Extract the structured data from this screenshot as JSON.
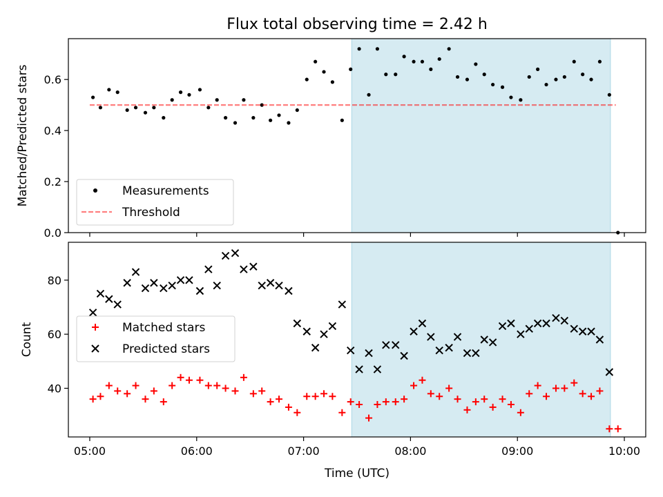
{
  "chart_data": {
    "type": "scatter",
    "title": "Flux total observing time = 2.42 h",
    "xlabel": "Time (UTC)",
    "x_ticks": [
      "05:00",
      "06:00",
      "07:00",
      "08:00",
      "09:00",
      "10:00"
    ],
    "x_tick_hours": [
      5,
      6,
      7,
      8,
      9,
      10
    ],
    "xlim_hours": [
      4.8,
      10.2
    ],
    "shaded_region_hours": [
      7.45,
      9.87
    ],
    "colors": {
      "shade": "#add8e6",
      "measurement": "#000000",
      "threshold": "#ff0000",
      "matched": "#ff0000",
      "predicted": "#000000"
    },
    "top_panel": {
      "ylabel": "Matched/Predicted stars",
      "ylim": [
        0,
        0.76
      ],
      "y_ticks": [
        0.0,
        0.2,
        0.4,
        0.6
      ],
      "y_tick_labels": [
        "0.0",
        "0.2",
        "0.4",
        "0.6"
      ],
      "legend": [
        "Measurements",
        "Threshold"
      ],
      "threshold": 0.5,
      "threshold_range_hours": [
        5.0,
        9.92
      ],
      "measurements": {
        "x": [
          5.03,
          5.1,
          5.18,
          5.26,
          5.35,
          5.43,
          5.52,
          5.6,
          5.69,
          5.77,
          5.85,
          5.93,
          6.03,
          6.11,
          6.19,
          6.27,
          6.36,
          6.44,
          6.53,
          6.61,
          6.69,
          6.77,
          6.86,
          6.94,
          7.03,
          7.11,
          7.19,
          7.27,
          7.36,
          7.44,
          7.52,
          7.61,
          7.69,
          7.77,
          7.86,
          7.94,
          8.03,
          8.11,
          8.19,
          8.27,
          8.36,
          8.44,
          8.53,
          8.61,
          8.69,
          8.77,
          8.86,
          8.94,
          9.03,
          9.11,
          9.19,
          9.27,
          9.36,
          9.44,
          9.53,
          9.61,
          9.69,
          9.77,
          9.86,
          9.94
        ],
        "y": [
          0.53,
          0.49,
          0.56,
          0.55,
          0.48,
          0.49,
          0.47,
          0.49,
          0.45,
          0.52,
          0.55,
          0.54,
          0.56,
          0.49,
          0.52,
          0.45,
          0.43,
          0.52,
          0.45,
          0.5,
          0.44,
          0.46,
          0.43,
          0.48,
          0.6,
          0.67,
          0.63,
          0.59,
          0.44,
          0.64,
          0.72,
          0.54,
          0.72,
          0.62,
          0.62,
          0.69,
          0.67,
          0.67,
          0.64,
          0.68,
          0.72,
          0.61,
          0.6,
          0.66,
          0.62,
          0.58,
          0.57,
          0.53,
          0.52,
          0.61,
          0.64,
          0.58,
          0.6,
          0.61,
          0.67,
          0.62,
          0.6,
          0.67,
          0.54,
          0.0
        ]
      }
    },
    "bottom_panel": {
      "ylabel": "Count",
      "ylim": [
        22,
        94
      ],
      "y_ticks": [
        40,
        60,
        80
      ],
      "y_tick_labels": [
        "40",
        "60",
        "80"
      ],
      "legend": [
        "Matched stars",
        "Predicted stars"
      ],
      "matched": {
        "x": [
          5.03,
          5.1,
          5.18,
          5.26,
          5.35,
          5.43,
          5.52,
          5.6,
          5.69,
          5.77,
          5.85,
          5.93,
          6.03,
          6.11,
          6.19,
          6.27,
          6.36,
          6.44,
          6.53,
          6.61,
          6.69,
          6.77,
          6.86,
          6.94,
          7.03,
          7.11,
          7.19,
          7.27,
          7.36,
          7.44,
          7.52,
          7.61,
          7.69,
          7.77,
          7.86,
          7.94,
          8.03,
          8.11,
          8.19,
          8.27,
          8.36,
          8.44,
          8.53,
          8.61,
          8.69,
          8.77,
          8.86,
          8.94,
          9.03,
          9.11,
          9.19,
          9.27,
          9.36,
          9.44,
          9.53,
          9.61,
          9.69,
          9.77,
          9.86,
          9.94
        ],
        "y": [
          36,
          37,
          41,
          39,
          38,
          41,
          36,
          39,
          35,
          41,
          44,
          43,
          43,
          41,
          41,
          40,
          39,
          44,
          38,
          39,
          35,
          36,
          33,
          31,
          37,
          37,
          38,
          37,
          31,
          35,
          34,
          29,
          34,
          35,
          35,
          36,
          41,
          43,
          38,
          37,
          40,
          36,
          32,
          35,
          36,
          33,
          36,
          34,
          31,
          38,
          41,
          37,
          40,
          40,
          42,
          38,
          37,
          39,
          25,
          25
        ]
      },
      "predicted": {
        "x": [
          5.03,
          5.1,
          5.18,
          5.26,
          5.35,
          5.43,
          5.52,
          5.6,
          5.69,
          5.77,
          5.85,
          5.93,
          6.03,
          6.11,
          6.19,
          6.27,
          6.36,
          6.44,
          6.53,
          6.61,
          6.69,
          6.77,
          6.86,
          6.94,
          7.03,
          7.11,
          7.19,
          7.27,
          7.36,
          7.44,
          7.52,
          7.61,
          7.69,
          7.77,
          7.86,
          7.94,
          8.03,
          8.11,
          8.19,
          8.27,
          8.36,
          8.44,
          8.53,
          8.61,
          8.69,
          8.77,
          8.86,
          8.94,
          9.03,
          9.11,
          9.19,
          9.27,
          9.36,
          9.44,
          9.53,
          9.61,
          9.69,
          9.77,
          9.86
        ],
        "y": [
          68,
          75,
          73,
          71,
          79,
          83,
          77,
          79,
          77,
          78,
          80,
          80,
          76,
          84,
          78,
          89,
          90,
          84,
          85,
          78,
          79,
          78,
          76,
          64,
          61,
          55,
          60,
          63,
          71,
          54,
          47,
          53,
          47,
          56,
          56,
          52,
          61,
          64,
          59,
          54,
          55,
          59,
          53,
          53,
          58,
          57,
          63,
          64,
          60,
          62,
          64,
          64,
          66,
          65,
          62,
          61,
          61,
          58,
          46
        ]
      }
    }
  }
}
